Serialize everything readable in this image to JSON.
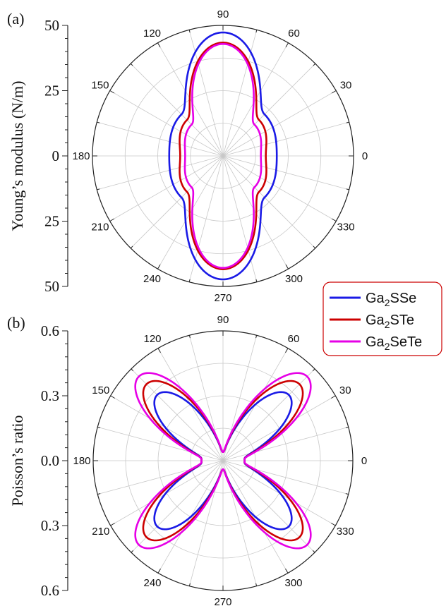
{
  "legend": {
    "entries": [
      {
        "base": "Ga",
        "sub": "2",
        "rest": "SSe",
        "color": "#1a1ae6"
      },
      {
        "base": "Ga",
        "sub": "2",
        "rest": "STe",
        "color": "#cc0000"
      },
      {
        "base": "Ga",
        "sub": "2",
        "rest": "SeTe",
        "color": "#e600e6"
      }
    ],
    "border_color": "#cc0000"
  },
  "chart_data": [
    {
      "type": "polar-line",
      "panel_label": "(a)",
      "ylabel": "Young’s modulus (N/m)",
      "angle_ticks": [
        "0",
        "30",
        "60",
        "90",
        "120",
        "150",
        "180",
        "210",
        "240",
        "270",
        "300",
        "330"
      ],
      "radial_range": [
        0,
        50
      ],
      "radial_ticks": [
        "50",
        "25",
        "0",
        "25",
        "50"
      ],
      "grid": true,
      "series": [
        {
          "name": "Ga2SSe",
          "color": "#1a1ae6",
          "min": 20.6,
          "max": 47.3,
          "at_45deg": 22.5
        },
        {
          "name": "Ga2STe",
          "color": "#cc0000",
          "min": 16.4,
          "max": 43.4,
          "at_45deg": 19.5
        },
        {
          "name": "Ga2SeTe",
          "color": "#e600e6",
          "min": 14.5,
          "max": 42.9,
          "at_45deg": 17.0
        }
      ]
    },
    {
      "type": "polar-line",
      "panel_label": "(b)",
      "ylabel": "Poisson’s ratio",
      "angle_ticks": [
        "0",
        "30",
        "60",
        "90",
        "120",
        "150",
        "180",
        "210",
        "240",
        "270",
        "300",
        "330"
      ],
      "radial_range": [
        0,
        0.6
      ],
      "radial_ticks": [
        "0.6",
        "0.3",
        "0.0",
        "0.3",
        "0.6"
      ],
      "grid": true,
      "series": [
        {
          "name": "Ga2SSe",
          "color": "#1a1ae6",
          "at_0deg": 0.1,
          "at_90deg": 0.04,
          "max": 0.43,
          "angle_of_max": 45
        },
        {
          "name": "Ga2STe",
          "color": "#cc0000",
          "at_0deg": 0.1,
          "at_90deg": 0.04,
          "max": 0.5,
          "angle_of_max": 45
        },
        {
          "name": "Ga2SeTe",
          "color": "#e600e6",
          "at_0deg": 0.1,
          "at_90deg": 0.04,
          "max": 0.55,
          "angle_of_max": 45
        }
      ]
    }
  ]
}
